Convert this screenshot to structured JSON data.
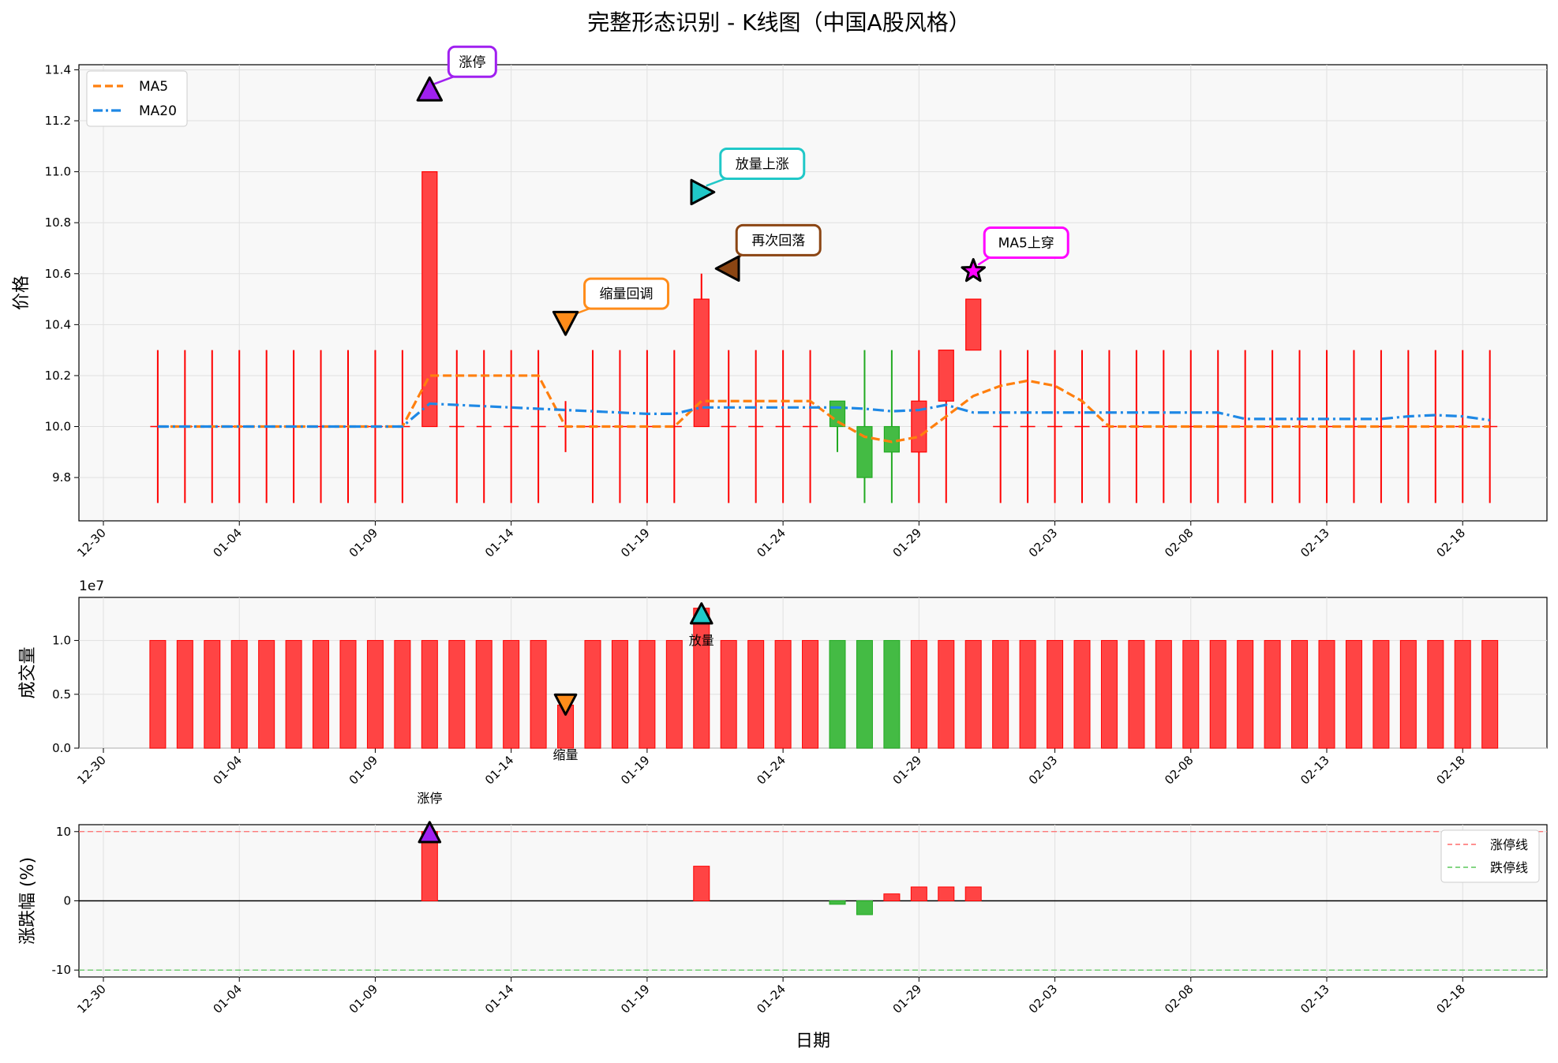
{
  "title": "完整形态识别 - K线图（中国A股风格）",
  "chart_data": [
    {
      "type": "candlestick",
      "ylabel": "价格",
      "ylim": [
        9.63,
        11.42
      ],
      "yticks": [
        "9.8",
        "10.0",
        "10.2",
        "10.4",
        "10.6",
        "10.8",
        "11.0",
        "11.2",
        "11.4"
      ],
      "xticks": [
        "12-30",
        "01-04",
        "01-09",
        "01-14",
        "01-19",
        "01-24",
        "01-29",
        "02-03",
        "02-08",
        "02-13",
        "02-18"
      ],
      "legend": [
        {
          "name": "MA5",
          "color": "#ff7f0e",
          "style": "dashed"
        },
        {
          "name": "MA20",
          "color": "#1e88e5",
          "style": "dashdot"
        }
      ],
      "dates": [
        "01-01",
        "01-02",
        "01-03",
        "01-04",
        "01-05",
        "01-06",
        "01-07",
        "01-08",
        "01-09",
        "01-10",
        "01-11",
        "01-12",
        "01-13",
        "01-14",
        "01-15",
        "01-16",
        "01-17",
        "01-18",
        "01-19",
        "01-20",
        "01-21",
        "01-22",
        "01-23",
        "01-24",
        "01-25",
        "01-26",
        "01-27",
        "01-28",
        "01-29",
        "01-30",
        "01-31",
        "02-01",
        "02-02",
        "02-03",
        "02-04",
        "02-05",
        "02-06",
        "02-07",
        "02-08",
        "02-09",
        "02-10",
        "02-11",
        "02-12",
        "02-13",
        "02-14",
        "02-15",
        "02-16",
        "02-17",
        "02-18",
        "02-19"
      ],
      "open": [
        10,
        10,
        10,
        10,
        10,
        10,
        10,
        10,
        10,
        10,
        10,
        10,
        10,
        10,
        10,
        10,
        10,
        10,
        10,
        10,
        10,
        10,
        10,
        10,
        10,
        10.1,
        10,
        10,
        9.9,
        10.1,
        10.3,
        10,
        10,
        10,
        10,
        10,
        10,
        10,
        10,
        10,
        10,
        10,
        10,
        10,
        10,
        10,
        10,
        10,
        10,
        10
      ],
      "close": [
        10,
        10,
        10,
        10,
        10,
        10,
        10,
        10,
        10,
        10,
        11,
        10,
        10,
        10,
        10,
        10,
        10,
        10,
        10,
        10,
        10.5,
        10,
        10,
        10,
        10,
        10,
        9.8,
        9.9,
        10.1,
        10.3,
        10.5,
        10,
        10,
        10,
        10,
        10,
        10,
        10,
        10,
        10,
        10,
        10,
        10,
        10,
        10,
        10,
        10,
        10,
        10,
        10
      ],
      "high": [
        10.3,
        10.3,
        10.3,
        10.3,
        10.3,
        10.3,
        10.3,
        10.3,
        10.3,
        10.3,
        11,
        10.3,
        10.3,
        10.3,
        10.3,
        10.1,
        10.3,
        10.3,
        10.3,
        10.3,
        10.6,
        10.3,
        10.3,
        10.3,
        10.3,
        10.1,
        10.3,
        10.3,
        10.3,
        10.3,
        10.5,
        10.3,
        10.3,
        10.3,
        10.3,
        10.3,
        10.3,
        10.3,
        10.3,
        10.3,
        10.3,
        10.3,
        10.3,
        10.3,
        10.3,
        10.3,
        10.3,
        10.3,
        10.3,
        10.3
      ],
      "low": [
        9.7,
        9.7,
        9.7,
        9.7,
        9.7,
        9.7,
        9.7,
        9.7,
        9.7,
        9.7,
        10,
        9.7,
        9.7,
        9.7,
        9.7,
        9.9,
        9.7,
        9.7,
        9.7,
        9.7,
        10,
        9.7,
        9.7,
        9.7,
        9.7,
        9.9,
        9.7,
        9.7,
        9.7,
        9.7,
        10.3,
        9.7,
        9.7,
        9.7,
        9.7,
        9.7,
        9.7,
        9.7,
        9.7,
        9.7,
        9.7,
        9.7,
        9.7,
        9.7,
        9.7,
        9.7,
        9.7,
        9.7,
        9.7,
        9.7
      ],
      "ma5": [
        10,
        10,
        10,
        10,
        10,
        10,
        10,
        10,
        10,
        10,
        10.2,
        10.2,
        10.2,
        10.2,
        10.2,
        10,
        10,
        10,
        10,
        10,
        10.1,
        10.1,
        10.1,
        10.1,
        10.1,
        10.02,
        9.96,
        9.94,
        9.96,
        10.04,
        10.12,
        10.16,
        10.18,
        10.16,
        10.1,
        10,
        10,
        10,
        10,
        10,
        10,
        10,
        10,
        10,
        10,
        10,
        10,
        10,
        10,
        10
      ],
      "ma20": [
        10,
        10,
        10,
        10,
        10,
        10,
        10,
        10,
        10,
        10,
        10.09,
        10.085,
        10.08,
        10.075,
        10.07,
        10.065,
        10.06,
        10.055,
        10.05,
        10.05,
        10.075,
        10.075,
        10.075,
        10.075,
        10.075,
        10.075,
        10.07,
        10.06,
        10.065,
        10.085,
        10.055,
        10.055,
        10.055,
        10.055,
        10.055,
        10.055,
        10.055,
        10.055,
        10.055,
        10.055,
        10.03,
        10.03,
        10.03,
        10.03,
        10.03,
        10.03,
        10.04,
        10.045,
        10.04,
        10.025
      ],
      "annotations": [
        {
          "text": "涨停",
          "date_index": 10,
          "y": 11.32,
          "marker": "triangle-up",
          "color": "#a020f0"
        },
        {
          "text": "缩量回调",
          "date_index": 15,
          "y": 10.41,
          "marker": "triangle-down",
          "color": "#ff8c1a"
        },
        {
          "text": "放量上涨",
          "date_index": 20,
          "y": 10.92,
          "marker": "triangle-right",
          "color": "#20c8c8"
        },
        {
          "text": "再次回落",
          "date_index": 21,
          "y": 10.62,
          "marker": "triangle-left",
          "color": "#8b4513"
        },
        {
          "text": "MA5上穿",
          "date_index": 30,
          "y": 10.61,
          "marker": "star",
          "color": "#ff00ff"
        }
      ]
    },
    {
      "type": "bar",
      "ylabel": "成交量",
      "scale_label": "1e7",
      "ylim": [
        0,
        1.4
      ],
      "yticks": [
        "0.0",
        "0.5",
        "1.0"
      ],
      "xticks": [
        "12-30",
        "01-04",
        "01-09",
        "01-14",
        "01-19",
        "01-24",
        "01-29",
        "02-03",
        "02-08",
        "02-13",
        "02-18"
      ],
      "values": [
        1,
        1,
        1,
        1,
        1,
        1,
        1,
        1,
        1,
        1,
        1,
        1,
        1,
        1,
        1,
        0.4,
        1,
        1,
        1,
        1,
        1.3,
        1,
        1,
        1,
        1,
        1,
        1,
        1,
        1,
        1,
        1,
        1,
        1,
        1,
        1,
        1,
        1,
        1,
        1,
        1,
        1,
        1,
        1,
        1,
        1,
        1,
        1,
        1,
        1,
        1
      ],
      "annotations": [
        {
          "text": "缩量",
          "date_index": 15,
          "marker": "triangle-down",
          "color": "#ff8c1a"
        },
        {
          "text": "放量",
          "date_index": 20,
          "marker": "triangle-up",
          "color": "#20c8c8"
        }
      ]
    },
    {
      "type": "bar",
      "ylabel": "涨跌幅 (%)",
      "xlabel": "日期",
      "ylim": [
        -11,
        11
      ],
      "yticks": [
        "-10",
        "0",
        "10"
      ],
      "xticks": [
        "12-30",
        "01-04",
        "01-09",
        "01-14",
        "01-19",
        "01-24",
        "01-29",
        "02-03",
        "02-08",
        "02-13",
        "02-18"
      ],
      "values": [
        0,
        0,
        0,
        0,
        0,
        0,
        0,
        0,
        0,
        0,
        10,
        0,
        0,
        0,
        0,
        0,
        0,
        0,
        0,
        0,
        5,
        0,
        0,
        0,
        0,
        -0.5,
        -2,
        1,
        2,
        2,
        2,
        0,
        0,
        0,
        0,
        0,
        0,
        0,
        0,
        0,
        0,
        0,
        0,
        0,
        0,
        0,
        0,
        0,
        0,
        0
      ],
      "legend": [
        {
          "name": "涨停线",
          "color": "#ff6b6b"
        },
        {
          "name": "跌停线",
          "color": "#5cc85c"
        }
      ],
      "annotations": [
        {
          "text": "涨停",
          "date_index": 10,
          "marker": "triangle-up",
          "color": "#a020f0"
        }
      ]
    }
  ]
}
